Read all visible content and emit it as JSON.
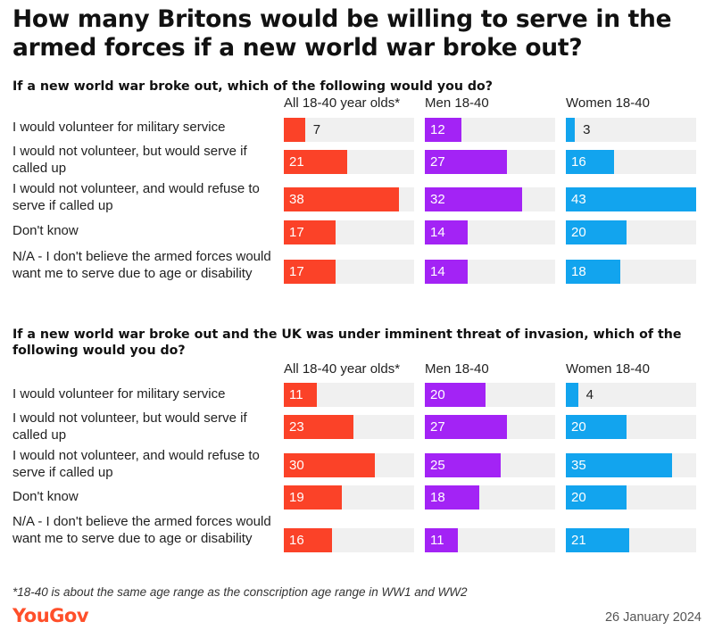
{
  "title": "How many Britons would be willing to serve in the armed forces if a new world war broke out?",
  "footnote": "*18-40 is about the same age range as the conscription age range in WW1 and WW2",
  "logo": "YouGov",
  "date": "26 January 2024",
  "colors": {
    "all": "#fb4228",
    "men": "#a323f5",
    "women": "#12a4ee",
    "track": "#f0f0f0"
  },
  "chart_data": [
    {
      "type": "bar",
      "title": "If a new world war broke out, which of the following would you do?",
      "categories": [
        "I would volunteer for military service",
        "I would not volunteer, but would serve if called up",
        "I would not volunteer, and would refuse to serve if called up",
        "Don't know",
        "N/A - I don't believe the armed forces would want me to serve due to age or disability"
      ],
      "series": [
        {
          "name": "All 18-40 year olds*",
          "values": [
            7,
            21,
            38,
            17,
            17
          ]
        },
        {
          "name": "Men 18-40",
          "values": [
            12,
            27,
            32,
            14,
            14
          ]
        },
        {
          "name": "Women 18-40",
          "values": [
            3,
            16,
            43,
            20,
            18
          ]
        }
      ],
      "xlim": [
        0,
        43
      ]
    },
    {
      "type": "bar",
      "title": "If a new world war broke out and the UK was under imminent threat of invasion, which of the following would you do?",
      "categories": [
        "I would volunteer for military service",
        "I would not volunteer, but would serve if called up",
        "I would not volunteer, and would refuse to serve if called up",
        "Don't know",
        "N/A - I don't believe the armed forces would want me to serve due to age or disability"
      ],
      "series": [
        {
          "name": "All 18-40 year olds*",
          "values": [
            11,
            23,
            30,
            19,
            16
          ]
        },
        {
          "name": "Men 18-40",
          "values": [
            20,
            27,
            25,
            18,
            11
          ]
        },
        {
          "name": "Women 18-40",
          "values": [
            4,
            20,
            35,
            20,
            21
          ]
        }
      ],
      "xlim": [
        0,
        43
      ]
    }
  ]
}
